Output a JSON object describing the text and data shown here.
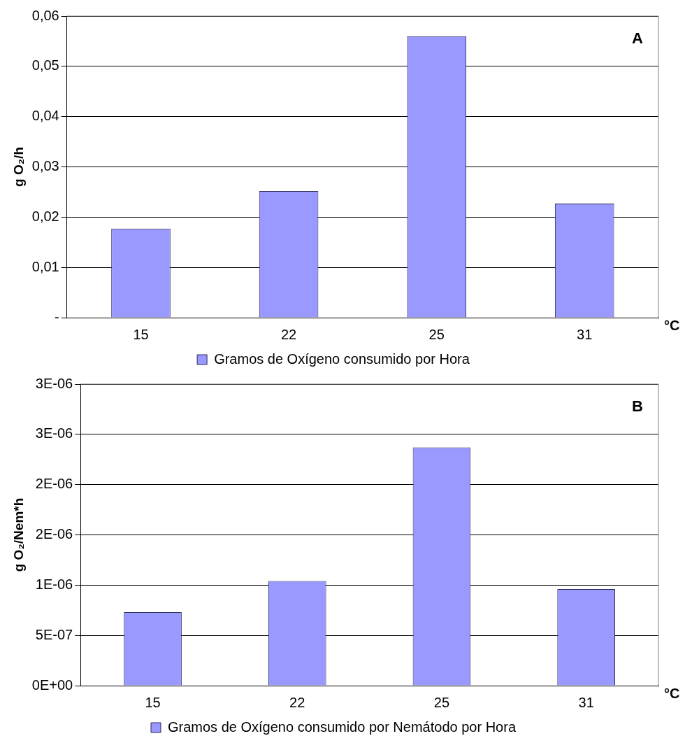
{
  "chart_data": [
    {
      "type": "bar",
      "ylabel": "g O₂/h",
      "xlabel": "°C",
      "categories": [
        "15",
        "22",
        "25",
        "31"
      ],
      "series": [
        {
          "name": "Gramos de Oxígeno consumido por Hora",
          "color": "#9999ff",
          "values": [
            0.0177,
            0.0252,
            0.056,
            0.0227
          ]
        }
      ],
      "ylim": [
        0,
        0.06
      ],
      "yticks": [
        {
          "value": 0,
          "label": "-"
        },
        {
          "value": 0.01,
          "label": "0,01"
        },
        {
          "value": 0.02,
          "label": "0,02"
        },
        {
          "value": 0.03,
          "label": "0,03"
        },
        {
          "value": 0.04,
          "label": "0,04"
        },
        {
          "value": 0.05,
          "label": "0,05"
        },
        {
          "value": 0.06,
          "label": "0,06"
        }
      ],
      "grid": "y",
      "legend": "bottom",
      "annotations": [
        "A"
      ]
    },
    {
      "type": "bar",
      "ylabel": "g O₂/Nem*h",
      "xlabel": "°C",
      "categories": [
        "15",
        "22",
        "25",
        "31"
      ],
      "series": [
        {
          "name": "Gramos de Oxígeno consumido por Nemátodo por Hora",
          "color": "#9999ff",
          "values": [
            7.3e-07,
            1.04e-06,
            2.37e-06,
            9.6e-07
          ]
        }
      ],
      "ylim": [
        0,
        3e-06
      ],
      "yticks": [
        {
          "value": 0,
          "label": "0E+00"
        },
        {
          "value": 5e-07,
          "label": "5E-07"
        },
        {
          "value": 1e-06,
          "label": "1E-06"
        },
        {
          "value": 1.5e-06,
          "label": "2E-06"
        },
        {
          "value": 2e-06,
          "label": "2E-06"
        },
        {
          "value": 2.5e-06,
          "label": "3E-06"
        },
        {
          "value": 3e-06,
          "label": "3E-06"
        }
      ],
      "grid": "y",
      "legend": "bottom",
      "annotations": [
        "B"
      ]
    }
  ]
}
